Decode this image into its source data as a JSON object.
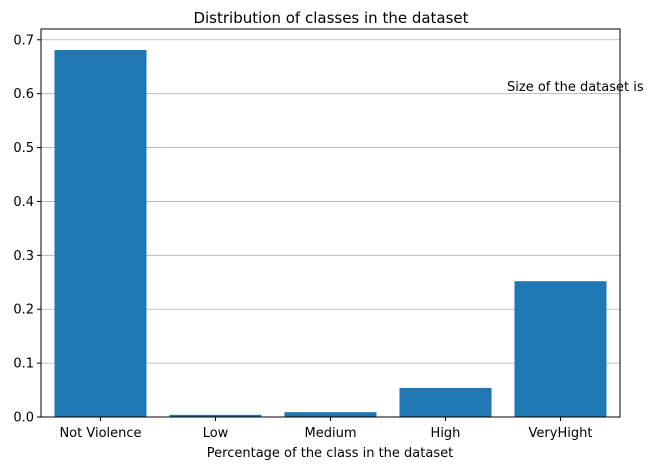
{
  "chart_data": {
    "type": "bar",
    "title": "Distribution of classes in the dataset",
    "xlabel": "Percentage of the class in the dataset",
    "ylabel": "",
    "categories": [
      "Not Violence",
      "Low",
      "Medium",
      "High",
      "VeryHight"
    ],
    "values": [
      0.681,
      0.004,
      0.009,
      0.054,
      0.252
    ],
    "ylim": [
      0,
      0.72
    ],
    "yticks": [
      "0.0",
      "0.1",
      "0.2",
      "0.3",
      "0.4",
      "0.5",
      "0.6",
      "0.7"
    ],
    "grid": "y",
    "annotation": "Size of the dataset is",
    "bar_color": "#1f77b4",
    "grid_color": "#b0b0b0"
  }
}
